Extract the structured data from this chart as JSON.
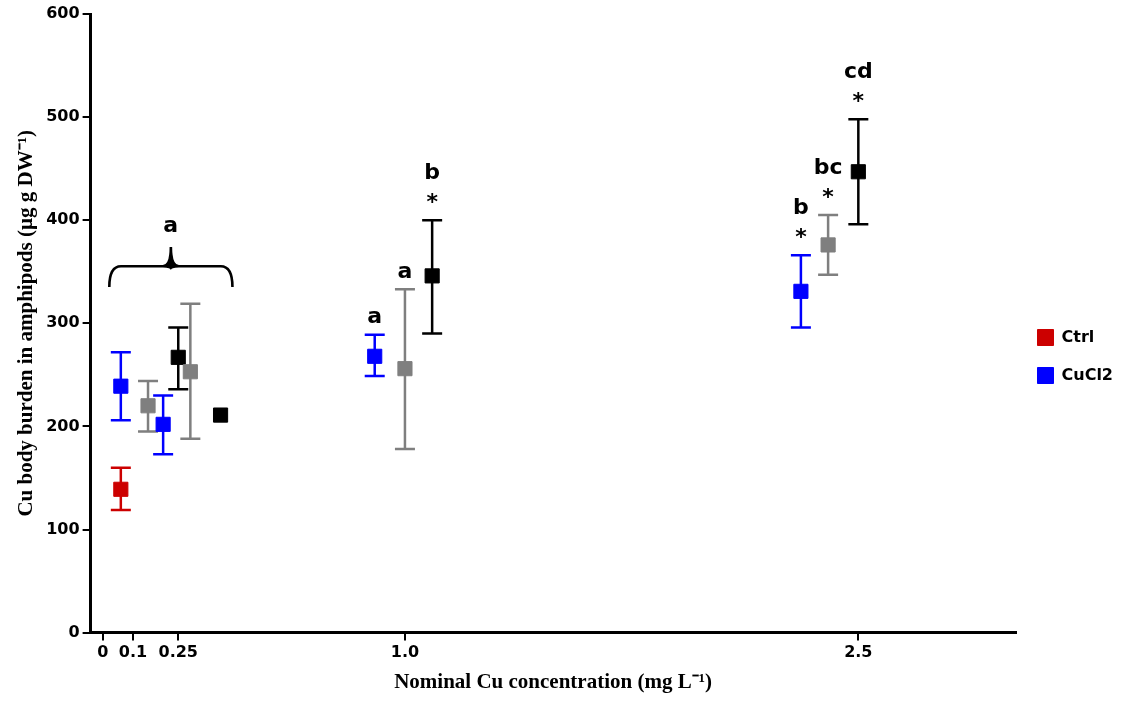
{
  "chart_data": {
    "type": "scatter",
    "xlabel": "Nominal Cu concentration (mg L⁻¹)",
    "ylabel": "Cu body burden in amphipods (µg g DW⁻¹)",
    "xlim": [
      -0.04,
      3.02
    ],
    "xticks": [
      0,
      0.1,
      0.25,
      {
        "value": 1,
        "label": "1.0"
      },
      2.5
    ],
    "ylim": [
      0,
      600
    ],
    "yticks": [
      0,
      100,
      200,
      300,
      400,
      500,
      600
    ],
    "grid": false,
    "legend": "right",
    "marker": "square",
    "series": [
      {
        "name": "Ctrl",
        "color": "#cc0000",
        "x": [
          0.06
        ],
        "values": [
          139
        ],
        "errors": [
          [
            119,
            160
          ]
        ]
      },
      {
        "name": "CuCl2",
        "color": "#0000ff",
        "x": [
          0.06,
          0.2,
          0.9,
          2.31
        ],
        "values": [
          239,
          202,
          268,
          331
        ],
        "errors": [
          [
            206,
            272
          ],
          [
            173,
            230
          ],
          [
            249,
            289
          ],
          [
            296,
            366
          ]
        ]
      },
      {
        "color": "#7f7f7f",
        "x": [
          0.15,
          0.29,
          1.0,
          2.4
        ],
        "values": [
          220,
          253,
          256,
          376
        ],
        "errors": [
          [
            195,
            244
          ],
          [
            188,
            319
          ],
          [
            178,
            333
          ],
          [
            347,
            405
          ]
        ]
      },
      {
        "color": "#000000",
        "x": [
          0.25,
          0.39,
          1.09,
          2.5
        ],
        "values": [
          267,
          211,
          346,
          447
        ],
        "errors": [
          [
            236,
            296
          ],
          null,
          [
            290,
            400
          ],
          [
            396,
            498
          ]
        ]
      }
    ],
    "annotations": [
      "a",
      {
        "text": "a",
        "x": 0.9,
        "y": 289
      },
      {
        "text": "a",
        "x": 1.0,
        "y": 333
      },
      {
        "text": "*",
        "x": 1.09,
        "y": 400
      },
      {
        "text": "b",
        "x": 1.09,
        "y": 400
      },
      {
        "text": "*",
        "x": 2.31,
        "y": 366
      },
      {
        "text": "b",
        "x": 2.31,
        "y": 366
      },
      {
        "text": "*",
        "x": 2.4,
        "y": 405
      },
      {
        "text": "bc",
        "x": 2.4,
        "y": 405
      },
      {
        "text": "*",
        "x": 2.5,
        "y": 498
      },
      {
        "text": "cd",
        "x": 2.5,
        "y": 498
      }
    ]
  }
}
